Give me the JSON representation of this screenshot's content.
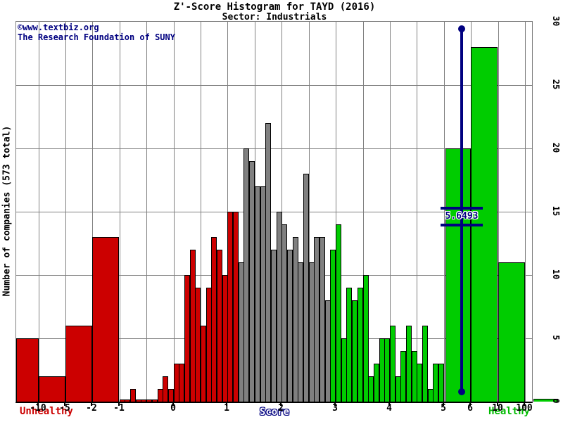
{
  "header": {
    "title": "Z'-Score Histogram for TAYD (2016)",
    "subtitle": "Sector: Industrials"
  },
  "watermark": {
    "line1": "©www.textbiz.org",
    "line2": "The Research Foundation of SUNY"
  },
  "zone_labels": {
    "left": "Unhealthy",
    "right": "Healthy"
  },
  "chart_data": {
    "type": "bar",
    "title": "Z'-Score Histogram for TAYD (2016)",
    "subtitle": "Sector: Industrials",
    "xlabel": "Score",
    "ylabel": "Number of companies (573 total)",
    "total_companies": 573,
    "x_ticks": [
      -10,
      -5,
      -2,
      -1,
      0,
      1,
      2,
      3,
      4,
      5,
      6,
      10,
      100
    ],
    "y_ticks": [
      0,
      5,
      10,
      15,
      20,
      25,
      30
    ],
    "ylim": [
      0,
      30
    ],
    "grid": true,
    "legend": false,
    "marker": {
      "value": 5.6493,
      "label": "5.6493",
      "color": "#000080"
    },
    "zone_colors": {
      "d": "#cc0000",
      "g": "#808080",
      "h": "#00cc00"
    },
    "bins_format": [
      "from",
      "to",
      "count",
      "zone"
    ],
    "bins": [
      [
        null,
        -10,
        5,
        "d"
      ],
      [
        -10,
        -5,
        2,
        "d"
      ],
      [
        -5,
        -2,
        6,
        "d"
      ],
      [
        -2,
        -1,
        13,
        "d"
      ],
      [
        -1,
        -0.9,
        0,
        "d"
      ],
      [
        -0.9,
        -0.8,
        0,
        "d"
      ],
      [
        -0.8,
        -0.7,
        1,
        "d"
      ],
      [
        -0.7,
        -0.6,
        0,
        "d"
      ],
      [
        -0.6,
        -0.5,
        0,
        "d"
      ],
      [
        -0.5,
        -0.4,
        0,
        "d"
      ],
      [
        -0.4,
        -0.3,
        0,
        "d"
      ],
      [
        -0.3,
        -0.2,
        1,
        "d"
      ],
      [
        -0.2,
        -0.1,
        2,
        "d"
      ],
      [
        -0.1,
        0,
        1,
        "d"
      ],
      [
        0,
        0.1,
        3,
        "d"
      ],
      [
        0.1,
        0.2,
        3,
        "d"
      ],
      [
        0.2,
        0.3,
        10,
        "d"
      ],
      [
        0.3,
        0.4,
        12,
        "d"
      ],
      [
        0.4,
        0.5,
        9,
        "d"
      ],
      [
        0.5,
        0.6,
        6,
        "d"
      ],
      [
        0.6,
        0.7,
        9,
        "d"
      ],
      [
        0.7,
        0.8,
        13,
        "d"
      ],
      [
        0.8,
        0.9,
        12,
        "d"
      ],
      [
        0.9,
        1,
        10,
        "d"
      ],
      [
        1,
        1.1,
        15,
        "d"
      ],
      [
        1.1,
        1.2,
        15,
        "d"
      ],
      [
        1.2,
        1.3,
        11,
        "g"
      ],
      [
        1.3,
        1.4,
        20,
        "g"
      ],
      [
        1.4,
        1.5,
        19,
        "g"
      ],
      [
        1.5,
        1.6,
        17,
        "g"
      ],
      [
        1.6,
        1.7,
        17,
        "g"
      ],
      [
        1.7,
        1.8,
        22,
        "g"
      ],
      [
        1.8,
        1.9,
        12,
        "g"
      ],
      [
        1.9,
        2,
        15,
        "g"
      ],
      [
        2,
        2.1,
        14,
        "g"
      ],
      [
        2.1,
        2.2,
        12,
        "g"
      ],
      [
        2.2,
        2.3,
        13,
        "g"
      ],
      [
        2.3,
        2.4,
        11,
        "g"
      ],
      [
        2.4,
        2.5,
        18,
        "g"
      ],
      [
        2.5,
        2.6,
        11,
        "g"
      ],
      [
        2.6,
        2.7,
        13,
        "g"
      ],
      [
        2.7,
        2.8,
        13,
        "g"
      ],
      [
        2.8,
        2.9,
        8,
        "g"
      ],
      [
        2.9,
        3,
        12,
        "h"
      ],
      [
        3,
        3.1,
        14,
        "h"
      ],
      [
        3.1,
        3.2,
        5,
        "h"
      ],
      [
        3.2,
        3.3,
        9,
        "h"
      ],
      [
        3.3,
        3.4,
        8,
        "h"
      ],
      [
        3.4,
        3.5,
        9,
        "h"
      ],
      [
        3.5,
        3.6,
        10,
        "h"
      ],
      [
        3.6,
        3.7,
        2,
        "h"
      ],
      [
        3.7,
        3.8,
        3,
        "h"
      ],
      [
        3.8,
        3.9,
        5,
        "h"
      ],
      [
        3.9,
        4,
        5,
        "h"
      ],
      [
        4,
        4.1,
        6,
        "h"
      ],
      [
        4.1,
        4.2,
        2,
        "h"
      ],
      [
        4.2,
        4.3,
        4,
        "h"
      ],
      [
        4.3,
        4.4,
        6,
        "h"
      ],
      [
        4.4,
        4.5,
        4,
        "h"
      ],
      [
        4.5,
        4.6,
        3,
        "h"
      ],
      [
        4.6,
        4.7,
        6,
        "h"
      ],
      [
        4.7,
        4.8,
        1,
        "h"
      ],
      [
        4.8,
        4.9,
        3,
        "h"
      ],
      [
        4.9,
        5,
        3,
        "h"
      ],
      [
        5,
        6,
        20,
        "h"
      ],
      [
        6,
        10,
        28,
        "h"
      ],
      [
        10,
        100,
        11,
        "h"
      ],
      [
        100,
        null,
        0,
        "h"
      ]
    ]
  }
}
